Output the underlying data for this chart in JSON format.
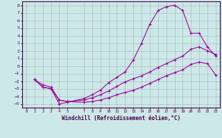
{
  "xlabel": "Windchill (Refroidissement éolien,°C)",
  "bg_color": "#cce8e8",
  "grid_color": "#999999",
  "line_color": "#990099",
  "xlim": [
    -0.5,
    23.5
  ],
  "ylim": [
    -5.5,
    8.5
  ],
  "xticks": [
    0,
    1,
    2,
    3,
    4,
    5,
    7,
    8,
    9,
    10,
    11,
    12,
    13,
    14,
    15,
    16,
    17,
    18,
    19,
    20,
    21,
    22,
    23
  ],
  "yticks": [
    -5,
    -4,
    -3,
    -2,
    -1,
    0,
    1,
    2,
    3,
    4,
    5,
    6,
    7,
    8
  ],
  "line1_x": [
    1,
    2,
    3,
    4,
    5,
    7,
    8,
    9,
    10,
    11,
    12,
    13,
    14,
    15,
    16,
    17,
    18,
    19,
    20,
    21,
    22,
    23
  ],
  "line1_y": [
    -1.8,
    -2.8,
    -3.0,
    -5.0,
    -4.8,
    -4.3,
    -3.8,
    -3.2,
    -2.2,
    -1.5,
    -0.8,
    0.8,
    3.0,
    5.5,
    7.3,
    7.8,
    8.0,
    7.3,
    4.3,
    4.3,
    2.5,
    1.3
  ],
  "line2_x": [
    1,
    2,
    3,
    4,
    5,
    7,
    8,
    9,
    10,
    11,
    12,
    13,
    14,
    15,
    16,
    17,
    18,
    19,
    20,
    21,
    22,
    23
  ],
  "line2_y": [
    -1.8,
    -2.5,
    -2.8,
    -4.5,
    -4.7,
    -4.5,
    -4.2,
    -3.8,
    -3.3,
    -2.7,
    -2.1,
    -1.7,
    -1.3,
    -0.8,
    -0.2,
    0.3,
    0.8,
    1.3,
    2.2,
    2.5,
    2.0,
    1.5
  ],
  "line3_x": [
    1,
    2,
    3,
    4,
    5,
    7,
    8,
    9,
    10,
    11,
    12,
    13,
    14,
    15,
    16,
    17,
    18,
    19,
    20,
    21,
    22,
    23
  ],
  "line3_y": [
    -1.8,
    -2.8,
    -3.0,
    -4.5,
    -4.7,
    -4.8,
    -4.7,
    -4.5,
    -4.2,
    -3.8,
    -3.5,
    -3.2,
    -2.8,
    -2.3,
    -1.8,
    -1.3,
    -0.9,
    -0.5,
    0.2,
    0.5,
    0.3,
    -1.2
  ]
}
